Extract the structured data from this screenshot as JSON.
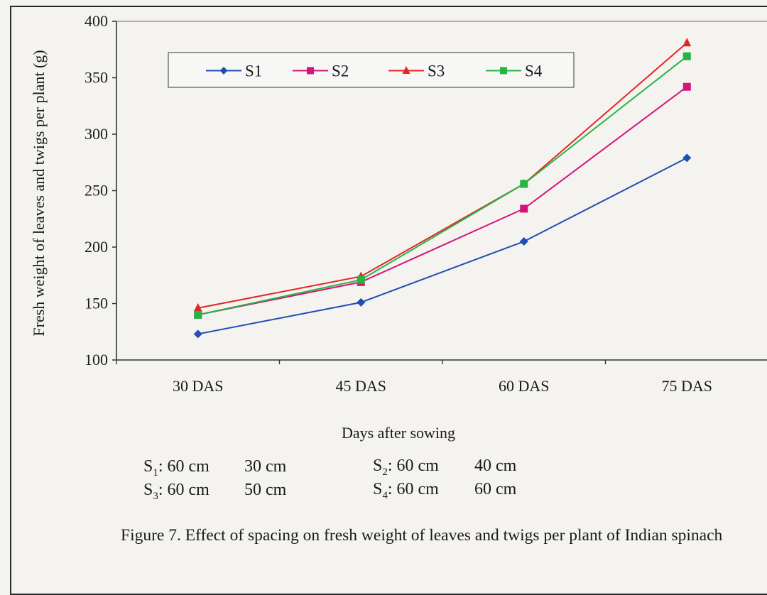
{
  "chart_data": {
    "type": "line",
    "categories": [
      "30 DAS",
      "45 DAS",
      "60 DAS",
      "75 DAS"
    ],
    "series": [
      {
        "name": "S1",
        "values": [
          123,
          151,
          205,
          279
        ],
        "color": "#1f4fb0",
        "marker": "diamond"
      },
      {
        "name": "S2",
        "values": [
          140,
          169,
          234,
          342
        ],
        "color": "#d4147a",
        "marker": "square"
      },
      {
        "name": "S3",
        "values": [
          146,
          174,
          256,
          381
        ],
        "color": "#e52424",
        "marker": "triangle"
      },
      {
        "name": "S4",
        "values": [
          140,
          171,
          256,
          369
        ],
        "color": "#25b545",
        "marker": "square"
      }
    ],
    "ylim": [
      100,
      400
    ],
    "yticks": [
      100,
      150,
      200,
      250,
      300,
      350,
      400
    ],
    "xlabel": "Days after sowing",
    "ylabel": "Fresh weight of leaves and twigs per plant (g)",
    "legend_position": "top-left inside plot"
  },
  "spacings": [
    {
      "label": "S",
      "sub": "1",
      "a": ": 60 cm",
      "b": "30 cm"
    },
    {
      "label": "S",
      "sub": "2",
      "a": ": 60 cm",
      "b": "40 cm"
    },
    {
      "label": "S",
      "sub": "3",
      "a": ": 60 cm",
      "b": "50 cm"
    },
    {
      "label": "S",
      "sub": "4",
      "a": ": 60 cm",
      "b": "60 cm"
    }
  ],
  "caption": "Figure 7. Effect of spacing on fresh weight of leaves and twigs per plant of Indian spinach"
}
